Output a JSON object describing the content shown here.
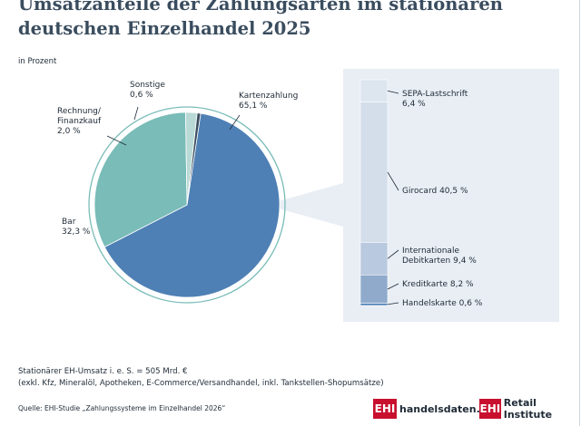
{
  "title": "Umsatzanteile der Zahlungsarten im stationären deutschen Einzelhandel 2025",
  "unit_label": "in Prozent",
  "chart_data": {
    "type": "pie",
    "slices": [
      {
        "key": "karte",
        "name_lines": [
          "Kartenzahlung"
        ],
        "value": 65.1,
        "value_label": "65,1 %",
        "color": "#4e80b5"
      },
      {
        "key": "bar",
        "name_lines": [
          "Bar"
        ],
        "value": 32.3,
        "value_label": "32,3 %",
        "color": "#79bcb8"
      },
      {
        "key": "rechnung",
        "name_lines": [
          "Rechnung/",
          "Finanzkauf"
        ],
        "value": 2.0,
        "value_label": "2,0 %",
        "color": "#b9d9d6"
      },
      {
        "key": "sonstige",
        "name_lines": [
          "Sonstige"
        ],
        "value": 0.6,
        "value_label": "0,6 %",
        "color": "#3a4d5f"
      }
    ],
    "breakdown": {
      "of": "Kartenzahlung",
      "segments": [
        {
          "key": "sepa",
          "name_lines": [
            "SEPA-Lastschrift"
          ],
          "value": 6.4,
          "value_label": "6,4 %",
          "color": "#dde5ef"
        },
        {
          "key": "girocard",
          "name_lines": [
            "Girocard 40,5 %"
          ],
          "value": 40.5,
          "value_label": "",
          "color": "#d4deeb"
        },
        {
          "key": "intl",
          "name_lines": [
            "Internationale",
            "Debitkarten 9,4 %"
          ],
          "value": 9.4,
          "value_label": "",
          "color": "#b9c9df"
        },
        {
          "key": "kredit",
          "name_lines": [
            "Kreditkarte  8,2 %"
          ],
          "value": 8.2,
          "value_label": "",
          "color": "#8faacb"
        },
        {
          "key": "handel",
          "name_lines": [
            "Handelskarte 0,6 %"
          ],
          "value": 0.6,
          "value_label": "",
          "color": "#4e80b5"
        }
      ]
    }
  },
  "note_lines": [
    "Stationärer EH-Umsatz i. e. S. = 505 Mrd. €",
    "(exkl. Kfz, Mineralöl, Apotheken, E-Commerce/Versandhandel, inkl. Tankstellen-Shopumsätze)"
  ],
  "source": "Quelle: EHI-Studie „Zahlungssysteme im Einzelhandel 2026“",
  "logos": {
    "ehi_mark": "EHI",
    "handelsdaten": "handelsdaten.de",
    "retail": "Retail Institute"
  },
  "colors": {
    "title": "#3a4d5f",
    "panel": "#e9eef5",
    "ring": "#79bcb8",
    "brand_red": "#c8102e"
  }
}
